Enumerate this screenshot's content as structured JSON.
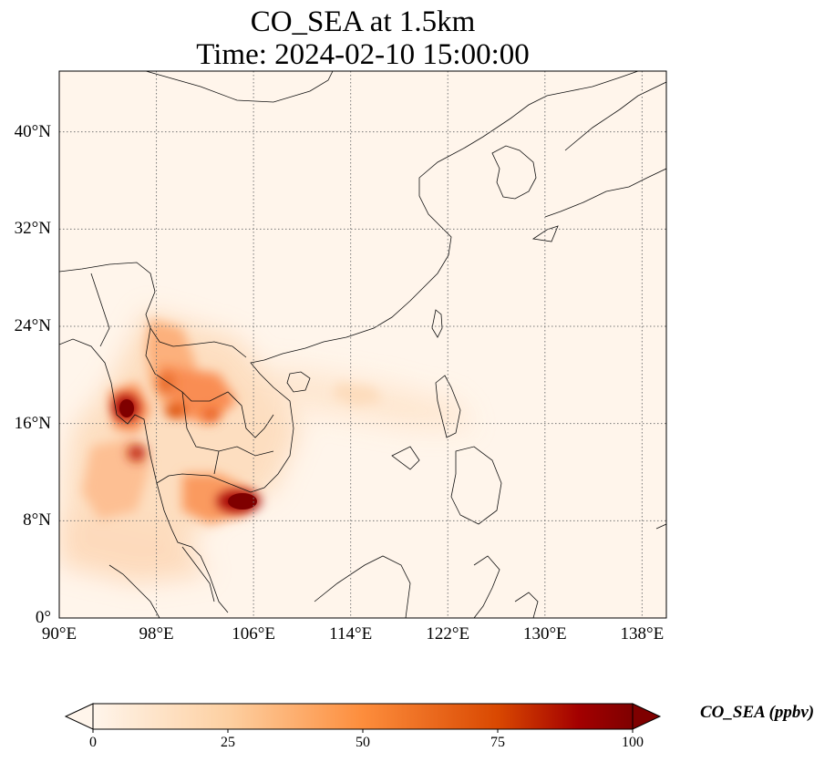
{
  "title": {
    "line1": "CO_SEA at 1.5km",
    "line2": "Time: 2024-02-10 15:00:00"
  },
  "map": {
    "lon_range": [
      90,
      140
    ],
    "lat_range": [
      0,
      45
    ],
    "lat_ticks": [
      {
        "value": 0,
        "label": "0°"
      },
      {
        "value": 8,
        "label": "8°N"
      },
      {
        "value": 16,
        "label": "16°N"
      },
      {
        "value": 24,
        "label": "24°N"
      },
      {
        "value": 32,
        "label": "32°N"
      },
      {
        "value": 40,
        "label": "40°N"
      }
    ],
    "lon_ticks": [
      {
        "value": 90,
        "label": "90°E"
      },
      {
        "value": 98,
        "label": "98°E"
      },
      {
        "value": 106,
        "label": "106°E"
      },
      {
        "value": 114,
        "label": "114°E"
      },
      {
        "value": 122,
        "label": "122°E"
      },
      {
        "value": 130,
        "label": "130°E"
      },
      {
        "value": 138,
        "label": "138°E"
      }
    ],
    "gridlines": "dotted",
    "background_color": "#fff5eb",
    "plumes": [
      {
        "lon": 95.8,
        "lat": 17.3,
        "level": 100
      },
      {
        "lon": 96.6,
        "lat": 13.6,
        "level": 85
      },
      {
        "lon": 100.4,
        "lat": 18.4,
        "level": 60
      },
      {
        "lon": 101.5,
        "lat": 16.8,
        "level": 75
      },
      {
        "lon": 104.0,
        "lat": 16.5,
        "level": 60
      },
      {
        "lon": 104.8,
        "lat": 9.7,
        "level": 100
      },
      {
        "lon": 98.2,
        "lat": 21.5,
        "level": 40
      },
      {
        "lon": 93.0,
        "lat": 9.0,
        "level": 30
      },
      {
        "lon": 115.0,
        "lat": 18.5,
        "level": 12
      }
    ]
  },
  "colorbar": {
    "min": 0,
    "max": 100,
    "ticks": [
      0,
      25,
      50,
      75,
      100
    ],
    "colors": [
      "#fff5eb",
      "#fdd0a2",
      "#fd8d3c",
      "#d94801",
      "#a30000",
      "#7f0000"
    ],
    "label": "CO_SEA (ppbv)",
    "extend": "both"
  }
}
